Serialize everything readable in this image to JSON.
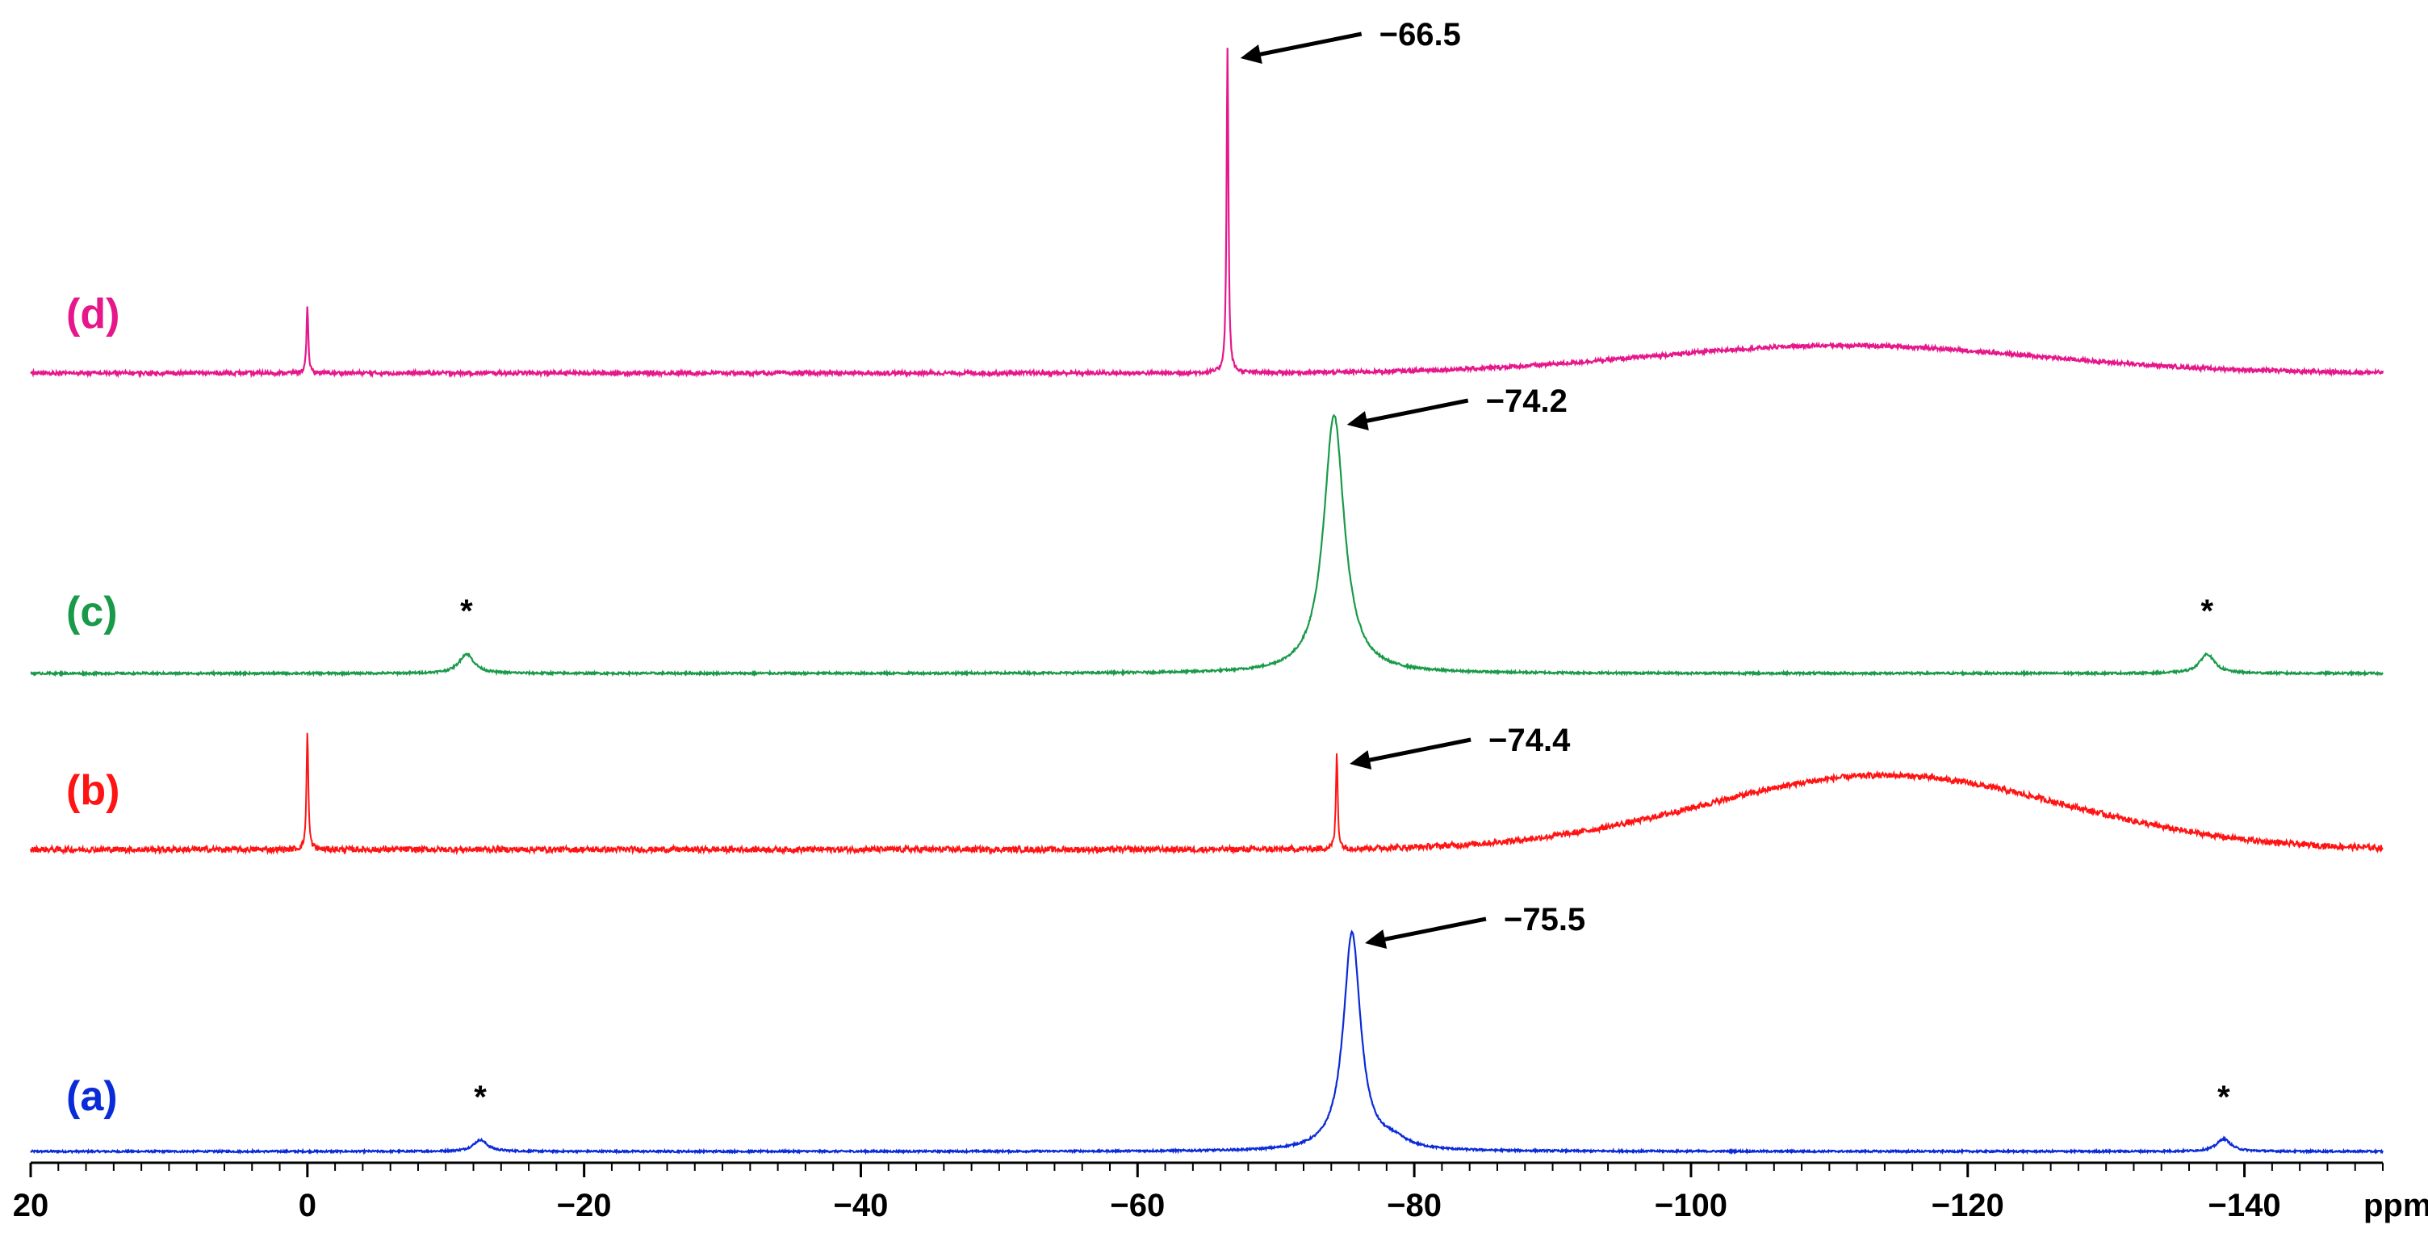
{
  "chart_data": {
    "type": "line",
    "title": "",
    "xlabel": "ppm",
    "ylabel": "",
    "xlim": [
      20,
      -150
    ],
    "x_reversed": true,
    "grid": false,
    "x_ticks": [
      20,
      0,
      -20,
      -40,
      -60,
      -80,
      -100,
      -120,
      -140
    ],
    "x_tick_labels": [
      "20",
      "0",
      "−20",
      "−40",
      "−60",
      "−80",
      "−100",
      "−120",
      "−140"
    ],
    "series": [
      {
        "name": "(a)",
        "color": "#0a2bd8",
        "noise": 0.004,
        "peaks": [
          {
            "x": -75.5,
            "height": 0.95,
            "width": 0.75,
            "label": "−75.5"
          },
          {
            "x": -78.5,
            "height": 0.035,
            "width": 1.2
          },
          {
            "x": -12.5,
            "height": 0.05,
            "width": 0.6,
            "sideband": true
          },
          {
            "x": -138.5,
            "height": 0.055,
            "width": 0.6,
            "sideband": true
          }
        ]
      },
      {
        "name": "(b)",
        "color": "#ff1414",
        "noise": 0.022,
        "peaks": [
          {
            "x": 0.0,
            "height": 0.9,
            "width": 0.08
          },
          {
            "x": -74.4,
            "height": 0.72,
            "width": 0.08,
            "label": "−74.4"
          },
          {
            "x": -114.0,
            "height": 0.56,
            "width": 13,
            "broad": true
          }
        ]
      },
      {
        "name": "(c)",
        "color": "#199a48",
        "noise": 0.004,
        "peaks": [
          {
            "x": -74.2,
            "height": 1.0,
            "width": 0.9,
            "label": "−74.2"
          },
          {
            "x": -11.5,
            "height": 0.075,
            "width": 0.65,
            "sideband": true
          },
          {
            "x": -137.3,
            "height": 0.075,
            "width": 0.65,
            "sideband": true
          }
        ]
      },
      {
        "name": "(d)",
        "color": "#e6178a",
        "noise": 0.006,
        "peaks": [
          {
            "x": 0.0,
            "height": 0.2,
            "width": 0.08
          },
          {
            "x": -66.5,
            "height": 1.0,
            "width": 0.08,
            "label": "−66.5"
          },
          {
            "x": -111.0,
            "height": 0.085,
            "width": 14,
            "broad": true
          }
        ]
      }
    ],
    "sideband_marker": "*"
  }
}
